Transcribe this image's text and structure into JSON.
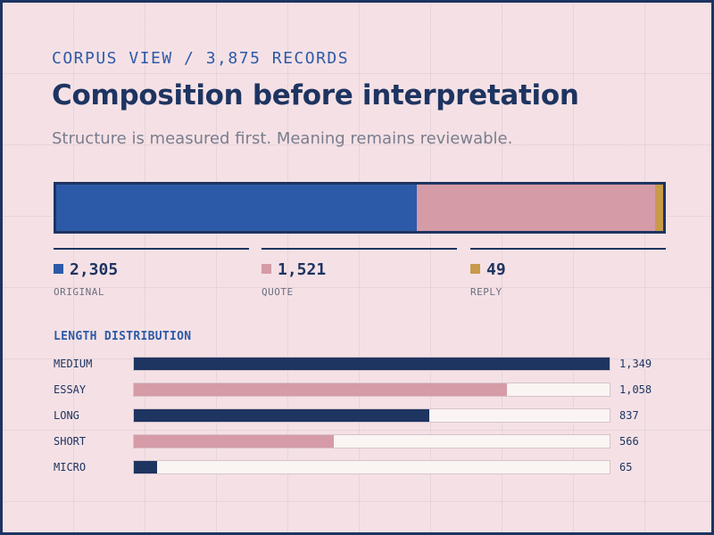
{
  "header": {
    "eyebrow": "CORPUS VIEW / 3,875 RECORDS",
    "title": "Composition before interpretation",
    "subtitle": "Structure is measured first. Meaning remains reviewable."
  },
  "colors": {
    "navy": "#1e3461",
    "blue": "#2d5aa8",
    "pink": "#d59ba6",
    "gold": "#c89a4a",
    "track": "#faf4f2"
  },
  "composition": [
    {
      "value_label": "2,305",
      "label": "ORIGINAL",
      "value": 2305,
      "color": "#2d5aa8"
    },
    {
      "value_label": "1,521",
      "label": "QUOTE",
      "value": 1521,
      "color": "#d59ba6"
    },
    {
      "value_label": "49",
      "label": "REPLY",
      "value": 49,
      "color": "#c89a4a"
    }
  ],
  "distribution": {
    "title": "LENGTH DISTRIBUTION",
    "rows": [
      {
        "category": "MEDIUM",
        "value": 1349,
        "value_label": "1,349",
        "color": "#1e3461"
      },
      {
        "category": "ESSAY",
        "value": 1058,
        "value_label": "1,058",
        "color": "#d59ba6"
      },
      {
        "category": "LONG",
        "value": 837,
        "value_label": "837",
        "color": "#1e3461"
      },
      {
        "category": "SHORT",
        "value": 566,
        "value_label": "566",
        "color": "#d59ba6"
      },
      {
        "category": "MICRO",
        "value": 65,
        "value_label": "65",
        "color": "#1e3461"
      }
    ]
  },
  "chart_data": [
    {
      "type": "bar",
      "stacked": true,
      "orientation": "horizontal",
      "categories": [
        "ORIGINAL",
        "QUOTE",
        "REPLY"
      ],
      "values": [
        2305,
        1521,
        49
      ],
      "colors": [
        "#2d5aa8",
        "#d59ba6",
        "#c89a4a"
      ]
    },
    {
      "type": "bar",
      "orientation": "horizontal",
      "title": "LENGTH DISTRIBUTION",
      "categories": [
        "MEDIUM",
        "ESSAY",
        "LONG",
        "SHORT",
        "MICRO"
      ],
      "values": [
        1349,
        1058,
        837,
        566,
        65
      ],
      "xlim": [
        0,
        1349
      ]
    }
  ]
}
